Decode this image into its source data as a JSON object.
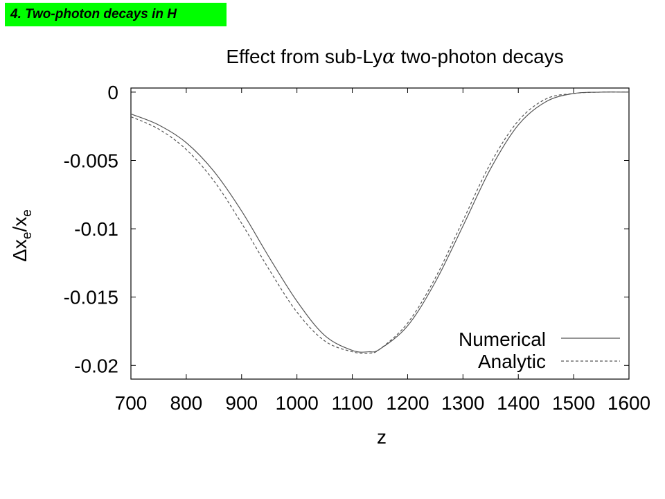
{
  "header": {
    "section_tag": "4. Two-photon decays in H"
  },
  "colors": {
    "tag_background": "#00ff00",
    "numerical_line": "#555555",
    "analytic_line": "#555555",
    "axis": "#000000"
  },
  "chart_data": {
    "type": "line",
    "title_parts": {
      "prefix": "Effect from sub-Ly",
      "symbol": "α",
      "suffix": " two-photon decays"
    },
    "xlabel": "z",
    "ylabel_parts": {
      "delta": "Δ",
      "x": "x",
      "sub": "e",
      "slash": "/"
    },
    "xlim": [
      700,
      1600
    ],
    "ylim": [
      -0.021,
      0.0003
    ],
    "x_ticks": [
      700,
      800,
      900,
      1000,
      1100,
      1200,
      1300,
      1400,
      1500,
      1600
    ],
    "x_tick_labels": [
      "700",
      "800",
      "900",
      "1000",
      "1100",
      "1200",
      "1300",
      "1400",
      "1500",
      "1600"
    ],
    "y_ticks": [
      0,
      -0.005,
      -0.01,
      -0.015,
      -0.02
    ],
    "y_tick_labels": [
      "0",
      "-0.005",
      "-0.01",
      "-0.015",
      "-0.02"
    ],
    "grid": false,
    "legend_position": "bottom-right",
    "series": [
      {
        "name": "Numerical",
        "style": "solid",
        "x": [
          700,
          750,
          800,
          850,
          900,
          950,
          1000,
          1050,
          1100,
          1130,
          1150,
          1200,
          1250,
          1300,
          1350,
          1400,
          1450,
          1500,
          1550,
          1600
        ],
        "y": [
          -0.0016,
          -0.0024,
          -0.0037,
          -0.0058,
          -0.0087,
          -0.0121,
          -0.0153,
          -0.0178,
          -0.0189,
          -0.019,
          -0.0188,
          -0.0171,
          -0.0139,
          -0.0098,
          -0.0056,
          -0.0024,
          -0.0007,
          -0.0001,
          0.0,
          0.0
        ]
      },
      {
        "name": "Analytic",
        "style": "dashed",
        "x": [
          700,
          750,
          800,
          850,
          900,
          950,
          1000,
          1050,
          1100,
          1130,
          1150,
          1200,
          1250,
          1300,
          1350,
          1400,
          1450,
          1500,
          1550,
          1600
        ],
        "y": [
          -0.0018,
          -0.0027,
          -0.0042,
          -0.0065,
          -0.0096,
          -0.013,
          -0.0161,
          -0.0182,
          -0.019,
          -0.0191,
          -0.0188,
          -0.0169,
          -0.0136,
          -0.0094,
          -0.0052,
          -0.0021,
          -0.0005,
          -0.0001,
          0.0,
          0.0
        ]
      }
    ]
  }
}
